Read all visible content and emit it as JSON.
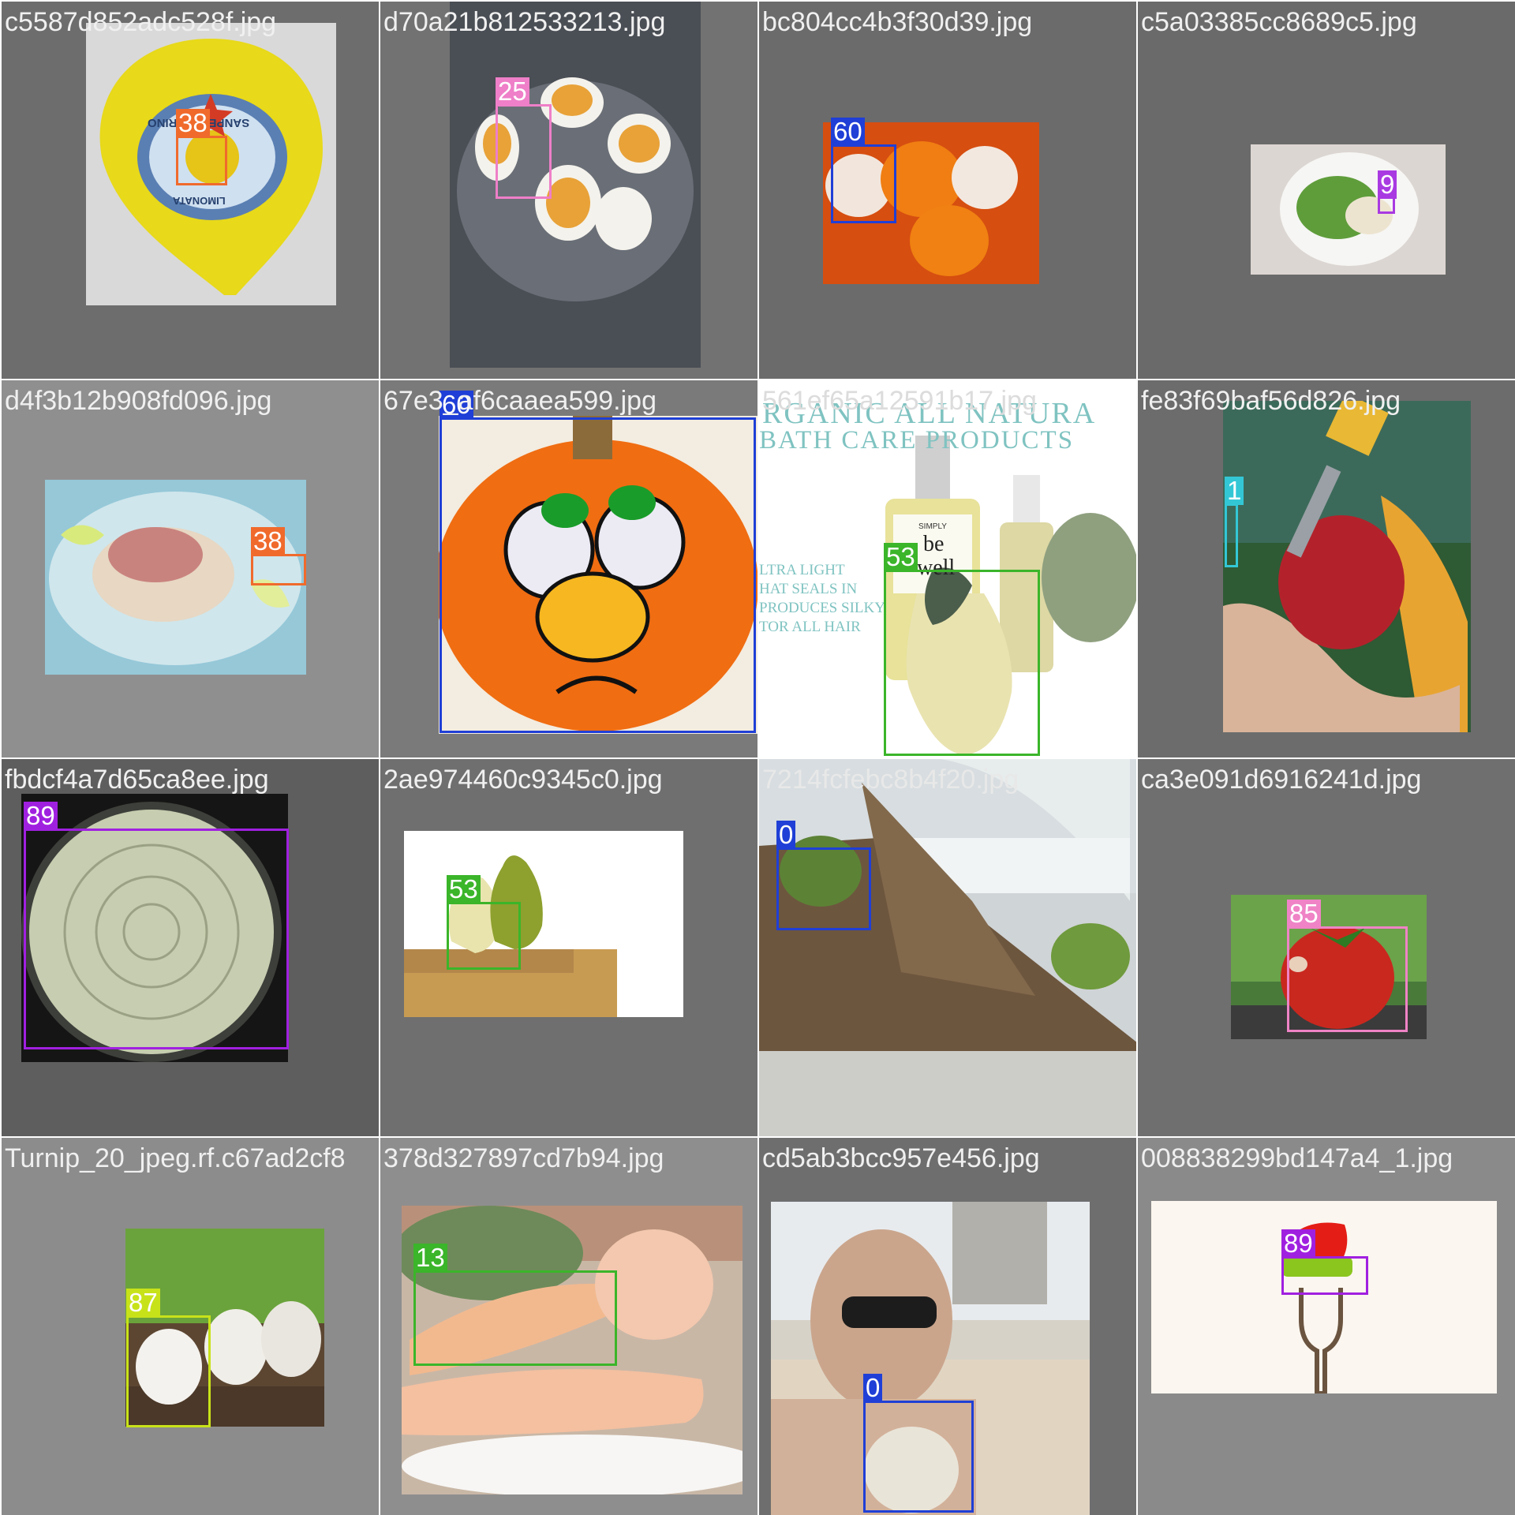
{
  "mosaic": {
    "cells": [
      {
        "file": "c5587d852adc528f.jpg",
        "bg": "#6d6d6d",
        "label": "38",
        "box_color": "#f06a2c",
        "subject": "limonata-lid-icon",
        "photo_bg": "#d9d9d9",
        "photo_texts": {
          "brand": "SANPELLEGRINO",
          "product": "LIMONATA"
        }
      },
      {
        "file": "d70a21b812533213.jpg",
        "bg": "#727272",
        "label": "25",
        "box_color": "#ee7fc8",
        "subject": "boiled-eggs-icon",
        "photo_bg": "#4a4e55"
      },
      {
        "file": "bc804cc4b3f30d39.jpg",
        "bg": "#6b6b6b",
        "label": "60",
        "box_color": "#1f3fd6",
        "subject": "pumpkins-icon",
        "photo_bg": "#d64e10"
      },
      {
        "file": "c5a03385cc8689c5.jpg",
        "bg": "#6a6a6a",
        "label": "9",
        "box_color": "#a93ae2",
        "subject": "salad-bowl-icon",
        "photo_bg": "#dcd6d2"
      },
      {
        "file": "d4f3b12b908fd096.jpg",
        "bg": "#8f8f8f",
        "label": "38",
        "box_color": "#f06a2c",
        "subject": "chicken-plate-icon",
        "photo_bg": "#96c8d8"
      },
      {
        "file": "67e3_af6caaea599.jpg",
        "bg": "#7a7a7a",
        "label": "60",
        "box_color": "#1f3fd6",
        "subject": "painted-pumpkin-icon",
        "photo_bg": "#f3ece0"
      },
      {
        "file": "561ef65a12591b17.jpg",
        "bg": "#ffffff",
        "label": "53",
        "box_color": "#3bb52a",
        "subject": "bath-products-icon",
        "photo_bg": "#ffffff",
        "photo_texts": {
          "headline_1": "RGANIC ALL NATURA",
          "headline_2": "BATH CARE PRODUCTS",
          "copy_1": "LTRA LIGHT",
          "copy_2": "HAT SEALS IN",
          "copy_3": "PRODUCES SILKY",
          "copy_4": "TOR ALL HAIR",
          "bottle_brand_1": "SIMPLY",
          "bottle_brand_2": "be",
          "bottle_brand_3": "well"
        }
      },
      {
        "file": "fe83f69baf56d826.jpg",
        "bg": "#6c6c6c",
        "label": "1",
        "box_color": "#33c7d6",
        "subject": "apple-knife-icon",
        "photo_bg": "#2e5a34"
      },
      {
        "file": "fbdcf4a7d65ca8ee.jpg",
        "bg": "#5e5e5e",
        "label": "89",
        "box_color": "#a020e0",
        "subject": "zucchini-carpaccio-icon",
        "photo_bg": "#151515"
      },
      {
        "file": "2ae974460c9345c0.jpg",
        "bg": "#6f6f6f",
        "label": "53",
        "box_color": "#3bb52a",
        "subject": "pears-icon",
        "photo_bg": "#ffffff"
      },
      {
        "file": "7214fcfebc8b4f20.jpg",
        "bg": "#8a6a4a",
        "label": "0",
        "box_color": "#1f3fd6",
        "subject": "coconut-driftwood-icon",
        "photo_bg": "#cfd4d6"
      },
      {
        "file": "ca3e091d6916241d.jpg",
        "bg": "#6f6f6f",
        "label": "85",
        "box_color": "#ef83c6",
        "subject": "tomato-icon",
        "photo_bg": "#4a7a3a"
      },
      {
        "file": "Turnip_20_jpeg.rf.c67ad2cf8",
        "bg": "#8c8c8c",
        "label": "87",
        "box_color": "#c8e21a",
        "subject": "turnips-icon",
        "photo_bg": "#5c4632"
      },
      {
        "file": "378d327897cd7b94.jpg",
        "bg": "#8e8e8e",
        "label": "13",
        "box_color": "#3bb52a",
        "subject": "carrots-icon",
        "photo_bg": "#c9b7a6"
      },
      {
        "file": "cd5ab3bcc957e456.jpg",
        "bg": "#6e6e6e",
        "label": "0",
        "box_color": "#1f3fd6",
        "subject": "beach-selfie-icon",
        "photo_bg": "#d6d2c8"
      },
      {
        "file": "008838299bd147a4_1.jpg",
        "bg": "#8a8a8a",
        "label": "89",
        "box_color": "#a020e0",
        "subject": "fork-salad-icon",
        "photo_bg": "#fbf6ef"
      }
    ]
  }
}
